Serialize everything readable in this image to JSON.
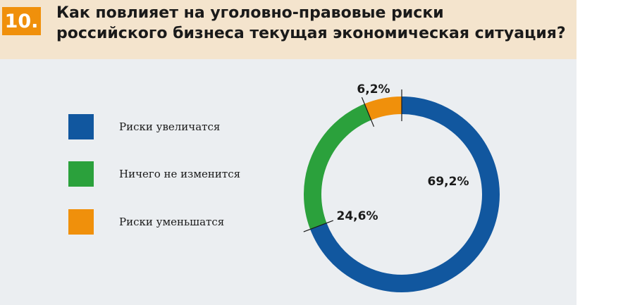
{
  "header": {
    "number": "10.",
    "title_line1": "Как повлияет на уголовно-правовые риски",
    "title_line2": "российского бизнеса текущая экономическая ситуация?"
  },
  "chart_data": {
    "type": "pie",
    "style": "donut",
    "categories": [
      "Риски увеличатся",
      "Ничего не изменится",
      "Риски уменьшатся"
    ],
    "values": [
      69.2,
      24.6,
      6.2
    ],
    "value_labels": [
      "69,2%",
      "24,6%",
      "6,2%"
    ],
    "colors": [
      "#11579f",
      "#2ba13c",
      "#f0900b"
    ],
    "start_angle_deg": 0,
    "direction": "clockwise",
    "legend_position": "left"
  }
}
